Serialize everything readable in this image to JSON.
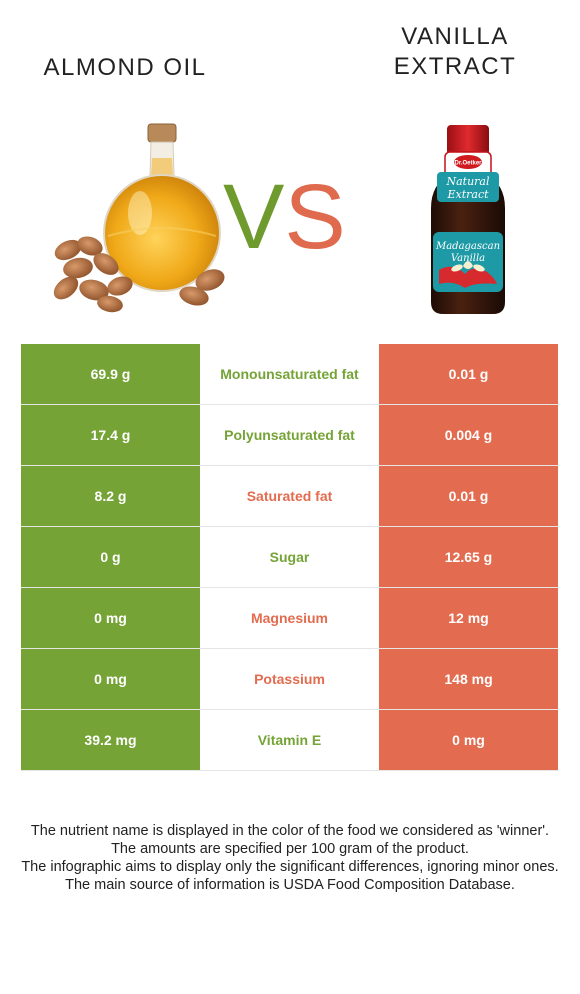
{
  "left_food": {
    "name": "ALMOND OIL",
    "color": "#75a336"
  },
  "right_food": {
    "name_line1": "VANILLA",
    "name_line2": "EXTRACT",
    "color": "#e36b4f"
  },
  "vs": {
    "v": "V",
    "s": "S"
  },
  "vanilla_bottle_label": {
    "brand": "Dr.Oetker",
    "line1": "Natural",
    "line2": "Extract",
    "line3": "Madagascan",
    "line4": "Vanilla"
  },
  "rows": [
    {
      "left": "69.9 g",
      "nutrient": "Monounsaturated fat",
      "right": "0.01 g",
      "winner": "left"
    },
    {
      "left": "17.4 g",
      "nutrient": "Polyunsaturated fat",
      "right": "0.004 g",
      "winner": "left"
    },
    {
      "left": "8.2 g",
      "nutrient": "Saturated fat",
      "right": "0.01 g",
      "winner": "right"
    },
    {
      "left": "0 g",
      "nutrient": "Sugar",
      "right": "12.65 g",
      "winner": "left"
    },
    {
      "left": "0 mg",
      "nutrient": "Magnesium",
      "right": "12 mg",
      "winner": "right"
    },
    {
      "left": "0 mg",
      "nutrient": "Potassium",
      "right": "148 mg",
      "winner": "right"
    },
    {
      "left": "39.2 mg",
      "nutrient": "Vitamin E",
      "right": "0 mg",
      "winner": "left"
    }
  ],
  "notes": [
    "The nutrient name is displayed in the color of the food we considered as 'winner'.",
    "The amounts are specified per 100 gram of the product.",
    "The infographic aims to display only the significant differences, ignoring minor ones.",
    "The main source of information is USDA Food Composition Database."
  ]
}
